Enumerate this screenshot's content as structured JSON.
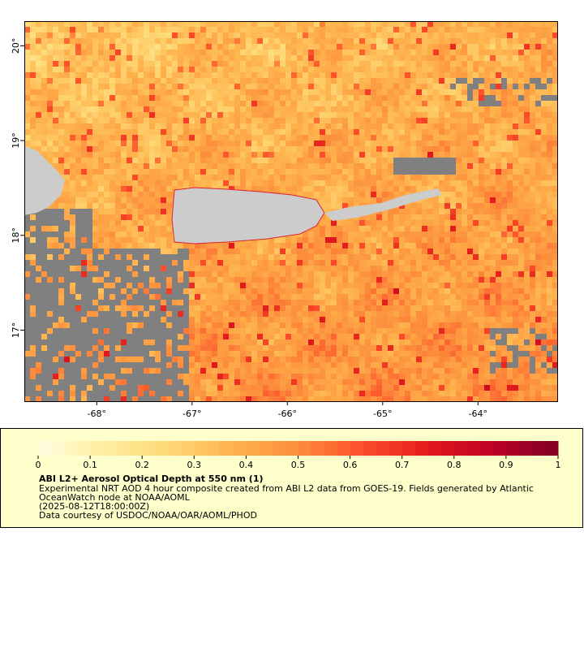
{
  "map": {
    "lat_ticks": [
      {
        "value": 20,
        "label": "20°"
      },
      {
        "value": 19,
        "label": "19°"
      },
      {
        "value": 18,
        "label": "18°"
      },
      {
        "value": 17,
        "label": "17°"
      }
    ],
    "lon_ticks": [
      {
        "value": -68,
        "label": "-68°"
      },
      {
        "value": -67,
        "label": "-67°"
      },
      {
        "value": -66,
        "label": "-66°"
      },
      {
        "value": -65,
        "label": "-65°"
      },
      {
        "value": -64,
        "label": "-64°"
      }
    ],
    "lat_range": [
      16.25,
      20.26
    ],
    "lon_range": [
      -68.76,
      -63.16
    ]
  },
  "colorbar": {
    "range": [
      0,
      1
    ],
    "ticks": [
      0,
      0.1,
      0.2,
      0.3,
      0.4,
      0.5,
      0.6,
      0.7,
      0.8,
      0.9,
      1
    ],
    "colormap": [
      "#ffffe0",
      "#ffeda0",
      "#fed976",
      "#feb24c",
      "#fd8d3c",
      "#fc4e2a",
      "#e31a1c",
      "#bd0026",
      "#800026"
    ]
  },
  "legend": {
    "title": "ABI L2+ Aerosol Optical Depth at 550 nm (1)",
    "lines": [
      "Experimental NRT AOD 4 hour composite created from ABI L2 data from GOES-19. Fields generated by Atlantic",
      "OceanWatch node at NOAA/AOML",
      "(2025-08-12T18:00:00Z)",
      "Data courtesy of USDOC/NOAA/OAR/AOML/PHOD"
    ]
  }
}
